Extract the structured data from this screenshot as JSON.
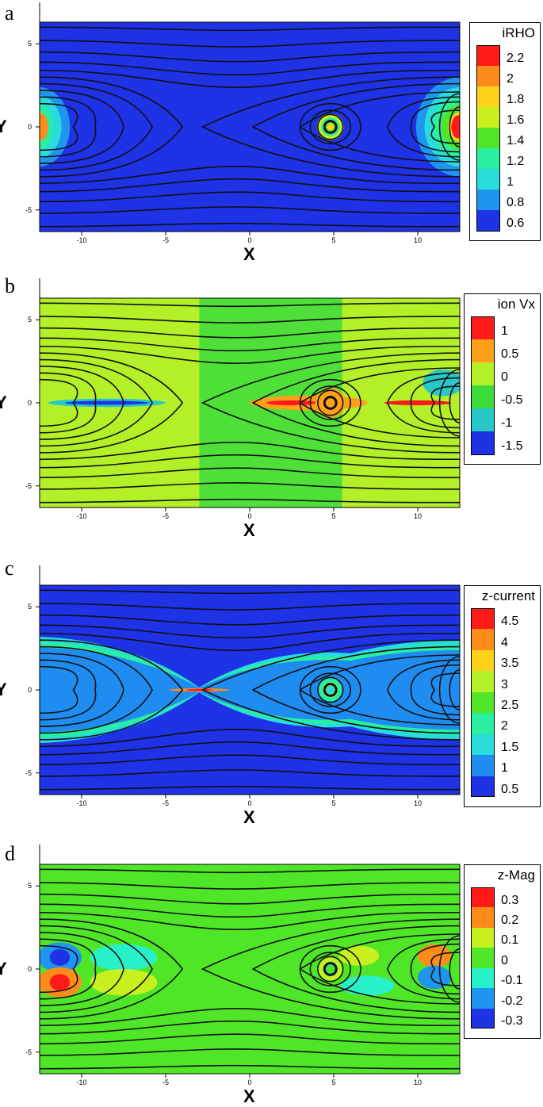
{
  "chart_data": [
    {
      "type": "heatmap",
      "panel_label": "a",
      "legend_title": "iRHO",
      "levels": [
        "2.2",
        "2",
        "1.8",
        "1.6",
        "1.4",
        "1.2",
        "1",
        "0.8",
        "0.6"
      ],
      "colors": [
        "#ff1a1a",
        "#ff8c1a",
        "#ffd21a",
        "#c8f01e",
        "#50e628",
        "#28f0a0",
        "#28dcdc",
        "#1e96f0",
        "#1e32e6"
      ],
      "background": "#1e32e6",
      "xlabel": "X",
      "ylabel": "Y",
      "xticks": [
        "-10",
        "-5",
        "0",
        "5",
        "10"
      ],
      "yticks": [
        "5",
        "0",
        "-5"
      ],
      "xlim": [
        -12.5,
        12.5
      ],
      "ylim": [
        -6.3,
        6.3
      ]
    },
    {
      "type": "heatmap",
      "panel_label": "b",
      "legend_title": "ion Vx",
      "levels": [
        "1",
        "0.5",
        "0",
        "-0.5",
        "-1",
        "-1.5"
      ],
      "colors": [
        "#ff1a1a",
        "#ffa01a",
        "#b4f028",
        "#3cdc3c",
        "#28c8c8",
        "#1e32e6"
      ],
      "background": "#b4f028",
      "xlabel": "X",
      "ylabel": "Y",
      "xticks": [
        "-10",
        "-5",
        "0",
        "5",
        "10"
      ],
      "yticks": [
        "5",
        "0",
        "-5"
      ],
      "xlim": [
        -12.5,
        12.5
      ],
      "ylim": [
        -6.3,
        6.3
      ]
    },
    {
      "type": "heatmap",
      "panel_label": "c",
      "legend_title": "z-current",
      "levels": [
        "4.5",
        "4",
        "3.5",
        "3",
        "2.5",
        "2",
        "1.5",
        "1",
        "0.5"
      ],
      "colors": [
        "#ff1a1a",
        "#ff8c1a",
        "#ffd21a",
        "#b4f028",
        "#50e628",
        "#28f0a0",
        "#28dcdc",
        "#1e8cf0",
        "#1e32e6"
      ],
      "background": "#1e32e6",
      "xlabel": "X",
      "ylabel": "Y",
      "xticks": [
        "-10",
        "-5",
        "0",
        "5",
        "10"
      ],
      "yticks": [
        "5",
        "0",
        "-5"
      ],
      "xlim": [
        -12.5,
        12.5
      ],
      "ylim": [
        -6.3,
        6.3
      ]
    },
    {
      "type": "heatmap",
      "panel_label": "d",
      "legend_title": "z-Mag",
      "levels": [
        "0.3",
        "0.2",
        "0.1",
        "0",
        "-0.1",
        "-0.2",
        "-0.3"
      ],
      "colors": [
        "#ff1a1a",
        "#ff8c1a",
        "#c8f01e",
        "#50e628",
        "#28f0c8",
        "#1e96f0",
        "#1e32e6"
      ],
      "background": "#50e628",
      "xlabel": "X",
      "ylabel": "Y",
      "xticks": [
        "-10",
        "-5",
        "0",
        "5",
        "10"
      ],
      "yticks": [
        "5",
        "0",
        "-5"
      ],
      "xlim": [
        -12.5,
        12.5
      ],
      "ylim": [
        -6.3,
        6.3
      ]
    }
  ]
}
